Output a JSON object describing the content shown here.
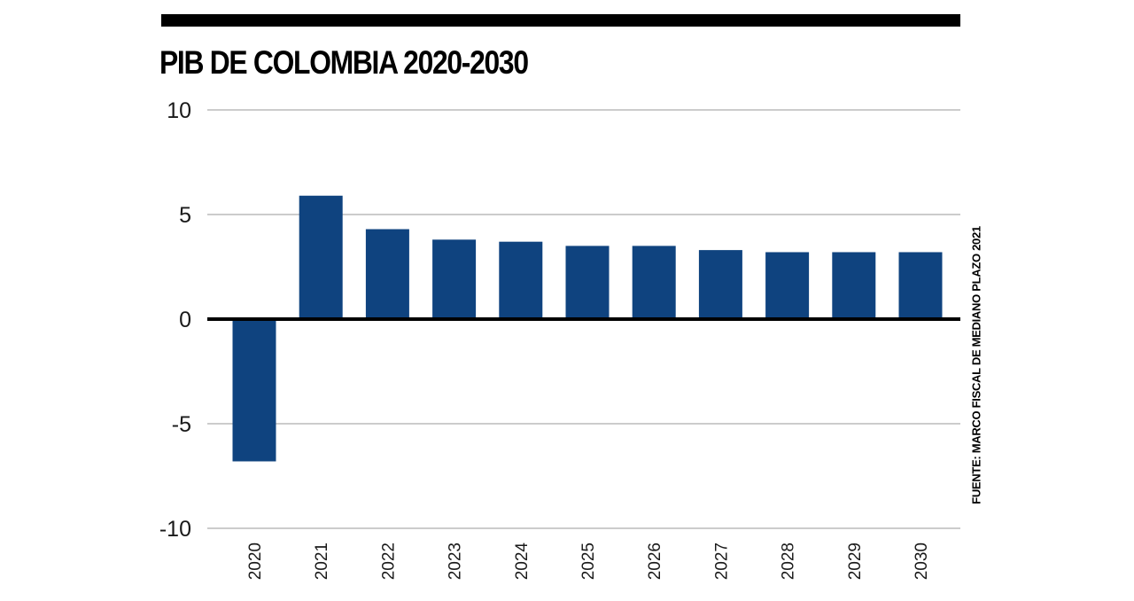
{
  "colors": {
    "bar": "#0f437f",
    "grid": "#9a9a9a",
    "rule": "#000000"
  },
  "source": "FUENTE: MARCO FISCAL DE MEDIANO PLAZO 2021",
  "chart_data": {
    "type": "bar",
    "title": "PIB DE COLOMBIA 2020-2030",
    "xlabel": "",
    "ylabel": "",
    "categories": [
      "2020",
      "2021",
      "2022",
      "2023",
      "2024",
      "2025",
      "2026",
      "2027",
      "2028",
      "2029",
      "2030"
    ],
    "values": [
      -6.8,
      5.9,
      4.3,
      3.8,
      3.7,
      3.5,
      3.5,
      3.3,
      3.2,
      3.2,
      3.2
    ],
    "ylim": [
      -10,
      10
    ],
    "yticks": [
      10,
      5,
      0,
      -5,
      -10
    ],
    "ytick_labels": [
      "10",
      "5",
      "0",
      "-5",
      "-10"
    ],
    "grid": true,
    "legend": "none"
  }
}
